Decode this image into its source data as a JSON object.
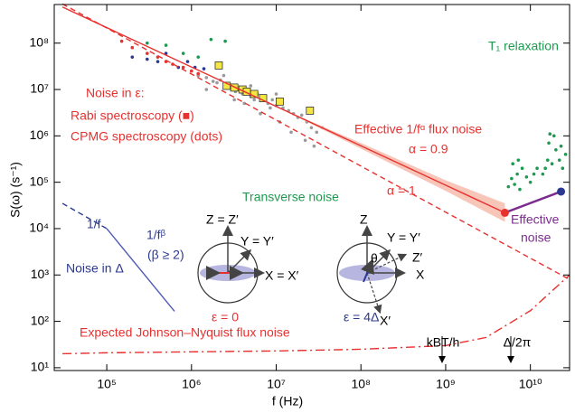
{
  "chart_data": {
    "type": "scatter",
    "x_label": "f (Hz)",
    "y_label": "S(ω) (s⁻¹)",
    "xscale": "log",
    "yscale": "log",
    "xlim": [
      24000,
      29000000000
    ],
    "ylim": [
      8.7,
      680000000
    ],
    "xticks": [
      {
        "value": 100000,
        "label": "10⁵"
      },
      {
        "value": 1000000,
        "label": "10⁶"
      },
      {
        "value": 10000000,
        "label": "10⁷"
      },
      {
        "value": 100000000,
        "label": "10⁸"
      },
      {
        "value": 1000000000,
        "label": "10⁹"
      },
      {
        "value": 10000000000,
        "label": "10¹⁰"
      }
    ],
    "yticks": [
      {
        "value": 10,
        "label": "10¹"
      },
      {
        "value": 100,
        "label": "10²"
      },
      {
        "value": 1000,
        "label": "10³"
      },
      {
        "value": 10000,
        "label": "10⁴"
      },
      {
        "value": 100000,
        "label": "10⁵"
      },
      {
        "value": 1000000,
        "label": "10⁶"
      },
      {
        "value": 10000000,
        "label": "10⁷"
      },
      {
        "value": 100000000,
        "label": "10⁸"
      }
    ],
    "grid": false,
    "series": [
      {
        "style": "dots",
        "color": "#9a9a9a",
        "x": [
          1200000,
          1500000,
          1800000,
          2000000,
          2200000,
          2500000,
          2800000,
          3000000,
          3300000,
          3600000,
          4000000,
          4500000,
          5000000,
          5500000,
          6000000,
          7000000,
          8000000,
          9000000,
          10000000,
          12000000,
          14000000,
          16000000,
          18000000,
          20000000,
          23000000,
          26000000,
          30000000,
          35000000,
          1500000,
          2400000,
          3200000,
          4200000,
          6500000,
          8500000,
          11000000,
          15000000,
          22000000,
          28000000,
          5000000,
          10000000
        ],
        "values": [
          20000000,
          18000000,
          15000000,
          14000000,
          16000000,
          12000000,
          13000000,
          11000000,
          9000000,
          10000000,
          8000000,
          9000000,
          7000000,
          6000000,
          8000000,
          6000000,
          5000000,
          6000000,
          4500000,
          4000000,
          3500000,
          3000000,
          2500000,
          2800000,
          2000000,
          1500000,
          1200000,
          1500000,
          10000000,
          20000000,
          6000000,
          5000000,
          3000000,
          4000000,
          2000000,
          1200000,
          800000,
          600000,
          12000000,
          8000000
        ]
      },
      {
        "style": "dots",
        "color": "#e8312f",
        "x": [
          150000,
          200000,
          300000,
          400000,
          500000,
          600000,
          800000,
          1000000,
          1200000
        ],
        "values": [
          110000000,
          80000000,
          60000000,
          50000000,
          40000000,
          35000000,
          30000000,
          25000000,
          22000000
        ]
      },
      {
        "style": "dots",
        "color": "#2b3990",
        "x": [
          200000,
          300000,
          400000,
          500000,
          700000,
          900000,
          1100000,
          1400000
        ],
        "values": [
          50000000,
          45000000,
          40000000,
          60000000,
          30000000,
          40000000,
          30000000,
          28000000
        ]
      },
      {
        "style": "dots",
        "color": "#1e9a50",
        "x": [
          300000,
          500000,
          800000,
          1200000,
          1700000,
          2500000
        ],
        "values": [
          100000000,
          90000000,
          60000000,
          50000000,
          120000000,
          110000000
        ]
      },
      {
        "style": "squares",
        "color": "#f5e642",
        "x": [
          2100000,
          2600000,
          3200000,
          4000000,
          4500000,
          5500000,
          7000000,
          11000000,
          25000000
        ],
        "values": [
          33000000,
          12000000,
          11000000,
          10000000,
          9000000,
          8000000,
          6500000,
          5500000,
          3500000
        ]
      },
      {
        "style": "dots",
        "color": "#1e9a50",
        "x": [
          5500000000,
          6000000000,
          6500000000,
          7000000000,
          7500000000,
          8000000000,
          9000000000,
          10000000000,
          11000000000,
          12000000000,
          14000000000,
          16000000000,
          17000000000,
          18000000000,
          20000000000,
          22000000000,
          24000000000,
          26000000000,
          15000000000,
          19000000000,
          23000000000,
          6200000000,
          7200000000,
          16500000000
        ],
        "values": [
          80000,
          120000,
          90000,
          150000,
          70000,
          200000,
          130000,
          100000,
          150000,
          200000,
          150000,
          300000,
          1100000,
          250000,
          500000,
          300000,
          200000,
          400000,
          200000,
          1000000,
          600000,
          250000,
          300000,
          700000
        ]
      },
      {
        "style": "band",
        "color": "#f6b7a8",
        "x": [
          10000000,
          100000000,
          1000000000,
          5000000000
        ],
        "values": [
          4300000,
          700000,
          110000,
          35000
        ],
        "lower": [
          4300000,
          530000,
          65000,
          14000
        ]
      },
      {
        "style": "line",
        "color": "#e8312f",
        "dash": "none",
        "x": [
          30000,
          5000000000
        ],
        "values": [
          600000000,
          22000
        ]
      },
      {
        "style": "line",
        "color": "#e8312f",
        "dash": "6 4",
        "x": [
          30000,
          29000000000
        ],
        "values": [
          700000000,
          800
        ]
      },
      {
        "style": "line",
        "color": "#e8312f",
        "dash": "10 4 2 4",
        "x": [
          30000,
          100000,
          1000000,
          10000000,
          100000000,
          1000000000,
          3000000000,
          10000000000,
          29000000000
        ],
        "values": [
          20,
          21,
          22,
          23,
          25,
          30,
          45,
          170,
          1000
        ]
      },
      {
        "style": "line",
        "color": "#2b3990",
        "dash": "6 4",
        "x": [
          30000,
          100000
        ],
        "values": [
          35000,
          10000
        ]
      },
      {
        "style": "line",
        "color": "#4f5bb5",
        "dash": "none",
        "x": [
          100000,
          630000
        ],
        "values": [
          10000,
          165
        ]
      },
      {
        "style": "line",
        "color": "#7b2d8e",
        "dash": "none",
        "end_colors": [
          "#e8312f",
          "#2b3990"
        ],
        "x": [
          5000000000,
          23000000000
        ],
        "values": [
          22000,
          63000
        ]
      }
    ],
    "annotations": [
      "T₁ relaxation",
      "Noise in ε:",
      "Rabi spectroscopy (■)",
      "CPMG spectroscopy (dots)",
      "Effective 1/fᵅ flux noise",
      "α = 0.9",
      "α = 1",
      "Transverse noise",
      "Effective",
      "noise",
      "1/f",
      "1/fᵝ",
      "(β ≥ 2)",
      "Noise in Δ",
      "Expected Johnson–Nyquist flux noise",
      "kBT/h",
      "Δ/2π",
      "ε = 0",
      "ε = 4Δ",
      "Z = Z′",
      "Y = Y′",
      "X = X′",
      "Z",
      "Y = Y′",
      "θ",
      "Z′",
      "X",
      "X′"
    ]
  }
}
